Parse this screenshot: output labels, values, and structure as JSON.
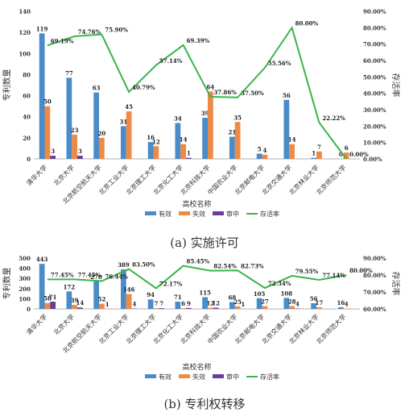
{
  "chart_data": [
    {
      "type": "bar",
      "categories": [
        "清华大学",
        "北京大学",
        "北京航空航天大学",
        "北京工业大学",
        "北京理工大学",
        "北京化工大学",
        "北京科技大学",
        "中国农业大学",
        "北京邮电大学",
        "北京交通大学",
        "北京林业大学",
        "北京师范大学"
      ],
      "series": [
        {
          "name": "有效",
          "color": "#4a8bc9",
          "values": [
            119,
            77,
            63,
            31,
            16,
            34,
            39,
            21,
            5,
            56,
            1,
            0
          ]
        },
        {
          "name": "失效",
          "color": "#ed8a45",
          "values": [
            50,
            23,
            20,
            45,
            12,
            14,
            64,
            35,
            4,
            14,
            7,
            6
          ]
        },
        {
          "name": "审中",
          "color": "#6a3d9a",
          "values": [
            3,
            3,
            0,
            0,
            0,
            1,
            0,
            0,
            0,
            0,
            0,
            0
          ]
        }
      ],
      "line": {
        "name": "存活率",
        "color": "#3ab54a",
        "values": [
          69.19,
          74.76,
          75.9,
          40.79,
          57.14,
          69.39,
          37.86,
          37.5,
          55.56,
          80.0,
          22.22,
          0.0
        ],
        "labels": [
          "69.19%",
          "74.76%",
          "75.90%",
          "40.79%",
          "57.14%",
          "69.39%",
          "37.86%",
          "37.50%",
          "55.56%",
          "80.00%",
          "22.22%",
          "0.00%"
        ]
      },
      "bar_labels": [
        [
          "119",
          "77",
          "63",
          "31",
          "16",
          "34",
          "39",
          "21",
          "5",
          "56",
          "1",
          "0"
        ],
        [
          "50",
          "23",
          "20",
          "45",
          "12",
          "14",
          "64",
          "35",
          "4",
          "14",
          "7",
          "6"
        ],
        [
          "3",
          "3",
          "",
          "",
          "",
          "1",
          "",
          "",
          "",
          "",
          "",
          ""
        ]
      ],
      "ylabel": "专利数量",
      "y2label": "存活率",
      "xlabel": "高校名称",
      "ylim": [
        0,
        140
      ],
      "y2lim": [
        0,
        90
      ],
      "yticks": [
        "0",
        "20",
        "40",
        "60",
        "80",
        "100",
        "120",
        "140"
      ],
      "y2ticks": [
        "0.00%",
        "10.00%",
        "20.00%",
        "30.00%",
        "40.00%",
        "50.00%",
        "60.00%",
        "70.00%",
        "80.00%",
        "90.00%"
      ],
      "caption": "(a) 实施许可"
    },
    {
      "type": "bar",
      "categories": [
        "清华大学",
        "北京大学",
        "北京航空航天大学",
        "北京工业大学",
        "北京理工大学",
        "北京化工大学",
        "北京科技大学",
        "中国农业大学",
        "北京邮电大学",
        "北京交通大学",
        "北京林业大学",
        "北京师范大学"
      ],
      "series": [
        {
          "name": "有效",
          "color": "#4a8bc9",
          "values": [
            443,
            172,
            270,
            389,
            94,
            71,
            115,
            68,
            105,
            108,
            56,
            16
          ]
        },
        {
          "name": "失效",
          "color": "#ed8a45",
          "values": [
            58,
            39,
            52,
            146,
            7,
            6,
            12,
            25,
            27,
            28,
            17,
            4
          ]
        },
        {
          "name": "审中",
          "color": "#6a3d9a",
          "values": [
            71,
            14,
            1,
            4,
            7,
            9,
            12,
            1,
            0,
            4,
            0,
            0
          ]
        }
      ],
      "line": {
        "name": "存活率",
        "color": "#3ab54a",
        "values": [
          77.45,
          77.45,
          76.44,
          83.5,
          72.17,
          85.45,
          82.54,
          82.73,
          72.34,
          79.55,
          77.14,
          80.0
        ],
        "labels": [
          "77.45%",
          "77.45%",
          "76.44%",
          "83.50%",
          "72.17%",
          "85.45%",
          "82.54%",
          "82.73%",
          "72.34%",
          "79.55%",
          "77.14%",
          "80.00%"
        ]
      },
      "bar_labels": [
        [
          "443",
          "172",
          "270",
          "389",
          "94",
          "71",
          "115",
          "68",
          "105",
          "108",
          "56",
          "16"
        ],
        [
          "58",
          "39",
          "52",
          "146",
          "7",
          "6",
          "12",
          "25",
          "27",
          "28",
          "17",
          "4"
        ],
        [
          "71",
          "14",
          "1",
          "4",
          "7",
          "9",
          "12",
          "1",
          "",
          "4",
          "",
          ""
        ]
      ],
      "ylabel": "专利数量",
      "y2label": "存活率",
      "xlabel": "高校名称",
      "ylim": [
        0,
        500
      ],
      "y2lim": [
        60,
        90
      ],
      "yticks": [
        "0",
        "100",
        "200",
        "300",
        "400",
        "500"
      ],
      "y2ticks": [
        "60.00%",
        "70.00%",
        "80.00%",
        "90.00%"
      ],
      "caption": "(b) 专利权转移"
    }
  ]
}
